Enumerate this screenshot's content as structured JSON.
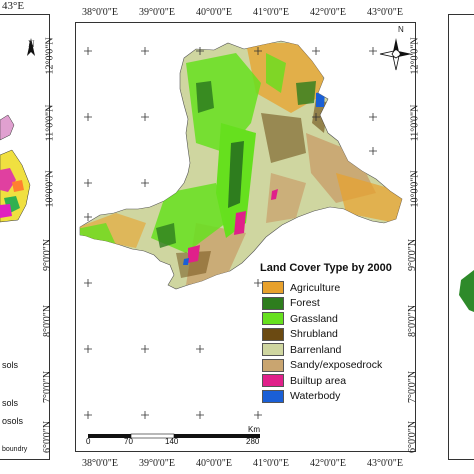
{
  "top_lon_labels": [
    "38°0'0\"E",
    "39°0'0\"E",
    "40°0'0\"E",
    "41°0'0\"E",
    "42°0'0\"E",
    "43°0'0\"E"
  ],
  "bottom_lon_labels": [
    "38°0'0\"E",
    "39°0'0\"E",
    "40°0'0\"E",
    "41°0'0\"E",
    "42°0'0\"E",
    "43°0'0\"E"
  ],
  "left_lat_labels": [
    "12°0'0\"N",
    "11°0'0\"N",
    "10°0'0\"N",
    "9°0'0\"N",
    "8°0'0\"N",
    "7°0'0\"N",
    "6°0'0\"N"
  ],
  "right_lat_labels": [
    "12°0'0\"N",
    "11°0'0\"N",
    "10°0'0\"N",
    "9°0'0\"N",
    "8°0'0\"N",
    "7°0'0\"N",
    "6°0'0\"N"
  ],
  "left_panel": {
    "corner_label": "43°E",
    "north_letter": "N",
    "legend_fragments": [
      "sols",
      "sols",
      "osols",
      "boundry"
    ]
  },
  "north_arrow": {
    "letter": "N"
  },
  "legend": {
    "title": "Land Cover Type by 2000",
    "items": [
      {
        "label": "Agriculture",
        "color": "#e8a12c"
      },
      {
        "label": "Forest",
        "color": "#2e7d1e"
      },
      {
        "label": "Grassland",
        "color": "#66e01e"
      },
      {
        "label": "Shrubland",
        "color": "#6b4a12"
      },
      {
        "label": "Barrenland",
        "color": "#cfd6a0"
      },
      {
        "label": "Sandy/exposedrock",
        "color": "#c9a570"
      },
      {
        "label": "Builtup area",
        "color": "#e0208a"
      },
      {
        "label": "Waterbody",
        "color": "#1a5fd6"
      }
    ]
  },
  "scale_bar": {
    "labels": [
      "0",
      "70",
      "140",
      "280"
    ],
    "unit": "Km"
  }
}
